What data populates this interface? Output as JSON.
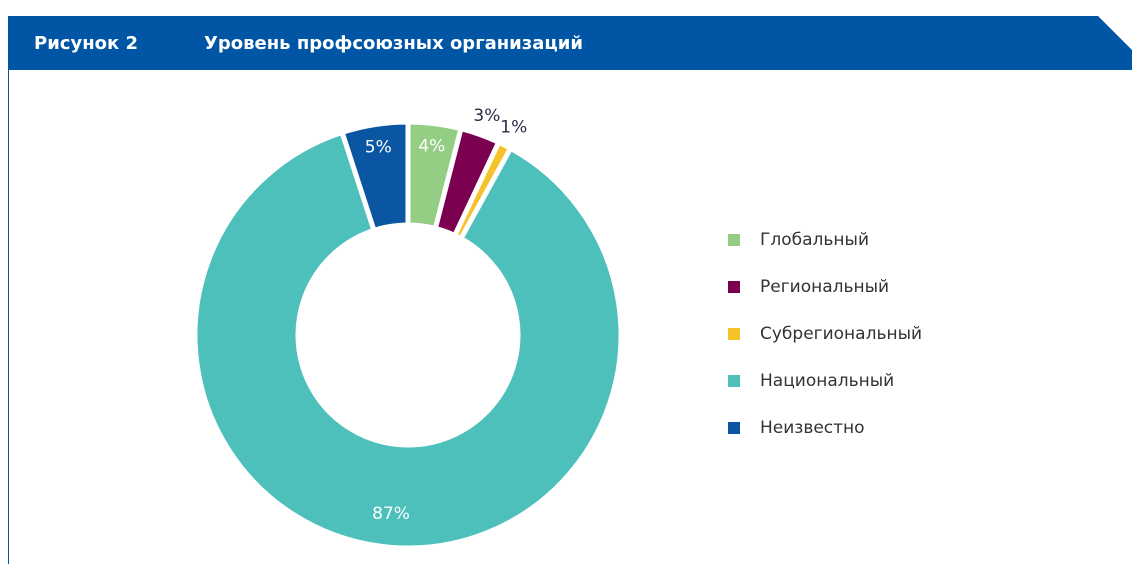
{
  "chart_data": {
    "type": "donut",
    "figure_label": "Рисунок 2",
    "title": "Уровень профсоюзных организаций",
    "categories": [
      "Глобальный",
      "Региональный",
      "Субрегиональный",
      "Национальный",
      "Неизвестно"
    ],
    "values": [
      4,
      3,
      1,
      87,
      5
    ],
    "value_labels": [
      "4%",
      "3%",
      "1%",
      "87%",
      "5%"
    ],
    "colors": [
      "#93ce84",
      "#7b0050",
      "#f5c22a",
      "#4dc0bc",
      "#0a56a3"
    ],
    "legend": "right"
  }
}
